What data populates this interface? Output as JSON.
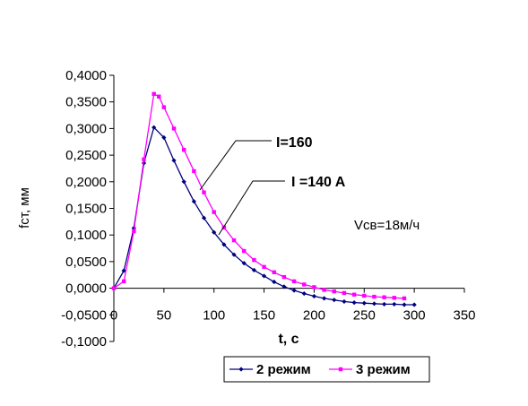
{
  "chart_data": {
    "type": "line",
    "xlabel": "t, c",
    "ylabel": "fст, мм",
    "xlim": [
      0,
      350
    ],
    "ylim": [
      -0.1,
      0.4
    ],
    "xticks": [
      "0",
      "50",
      "100",
      "150",
      "200",
      "250",
      "300",
      "350"
    ],
    "yticks": [
      "0,4000",
      "0,3500",
      "0,3000",
      "0,2500",
      "0,2000",
      "0,1500",
      "0,1000",
      "0,0500",
      "0,0000",
      "-0,0500",
      "-0,1000"
    ],
    "grid": false,
    "legend_position": "bottom",
    "annotations": [
      {
        "text": "I=160",
        "points_to": "3 режим"
      },
      {
        "text": "I =140 A",
        "points_to": "2 режим"
      },
      {
        "text": "Vсв=18м/ч"
      }
    ],
    "series": [
      {
        "name": "2 режим",
        "color": "#000080",
        "x": [
          0,
          10,
          20,
          30,
          40,
          50,
          60,
          70,
          80,
          90,
          100,
          110,
          120,
          130,
          140,
          150,
          160,
          170,
          180,
          190,
          200,
          210,
          220,
          230,
          240,
          250,
          260,
          270,
          280,
          290,
          300
        ],
        "y": [
          0.0,
          0.033,
          0.113,
          0.235,
          0.302,
          0.283,
          0.24,
          0.2,
          0.163,
          0.132,
          0.105,
          0.082,
          0.063,
          0.047,
          0.034,
          0.023,
          0.012,
          0.003,
          -0.004,
          -0.01,
          -0.015,
          -0.019,
          -0.022,
          -0.025,
          -0.027,
          -0.028,
          -0.029,
          -0.03,
          -0.03,
          -0.031,
          -0.031
        ]
      },
      {
        "name": "3 режим",
        "color": "#ff00ff",
        "x": [
          0,
          10,
          20,
          30,
          40,
          45,
          50,
          60,
          70,
          80,
          90,
          100,
          110,
          120,
          130,
          140,
          150,
          160,
          170,
          180,
          190,
          200,
          210,
          220,
          230,
          240,
          250,
          260,
          270,
          280,
          290
        ],
        "y": [
          0.0,
          0.013,
          0.107,
          0.242,
          0.365,
          0.36,
          0.34,
          0.3,
          0.26,
          0.22,
          0.18,
          0.143,
          0.114,
          0.09,
          0.07,
          0.053,
          0.04,
          0.03,
          0.021,
          0.013,
          0.007,
          0.002,
          -0.003,
          -0.006,
          -0.009,
          -0.012,
          -0.014,
          -0.016,
          -0.017,
          -0.018,
          -0.019
        ]
      }
    ]
  }
}
